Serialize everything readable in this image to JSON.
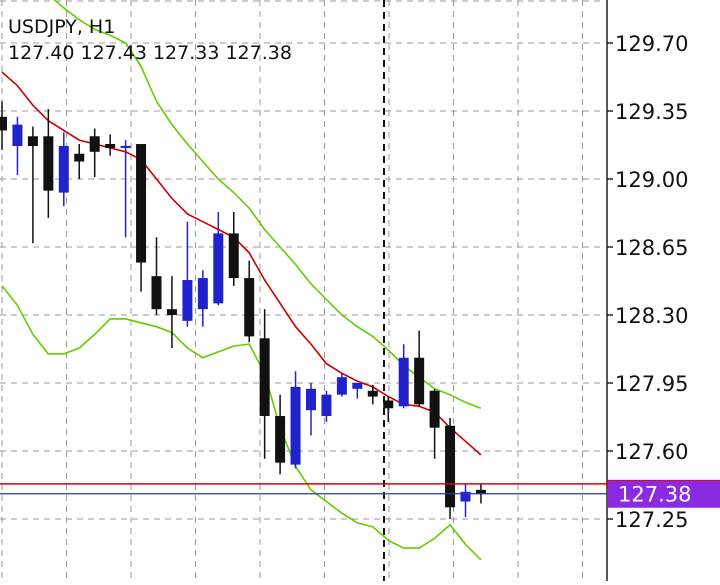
{
  "header": {
    "symbol_timeframe": "USDJPY, H1",
    "open": "127.40",
    "high": "127.43",
    "low": "127.33",
    "close": "127.38"
  },
  "colors": {
    "bull_candle": "#2222cc",
    "bear_candle": "#111111",
    "middle_band": "#cc0000",
    "outer_bands": "#66cc00",
    "bid_line": "#dd0000",
    "ask_line": "#3333aa",
    "price_tag_bg": "#8a2be2",
    "grid": "#9a9a9a",
    "period_separator": "#111111"
  },
  "chart_data": {
    "type": "candlestick",
    "symbol": "USDJPY",
    "timeframe": "H1",
    "ylim": [
      127.03,
      129.85
    ],
    "y_ticks": [
      "129.70",
      "129.35",
      "129.00",
      "128.65",
      "128.30",
      "127.95",
      "127.60",
      "127.25"
    ],
    "current_price": "127.38",
    "grid": true,
    "indicator": "bollinger_bands",
    "candles": [
      {
        "o": 129.32,
        "h": 129.4,
        "l": 129.15,
        "c": 129.25
      },
      {
        "o": 129.17,
        "h": 129.32,
        "l": 129.02,
        "c": 129.28
      },
      {
        "o": 129.22,
        "h": 129.27,
        "l": 128.67,
        "c": 129.17
      },
      {
        "o": 129.22,
        "h": 129.36,
        "l": 128.8,
        "c": 128.94
      },
      {
        "o": 128.93,
        "h": 129.24,
        "l": 128.86,
        "c": 129.17
      },
      {
        "o": 129.13,
        "h": 129.18,
        "l": 129.0,
        "c": 129.09
      },
      {
        "o": 129.22,
        "h": 129.26,
        "l": 129.01,
        "c": 129.14
      },
      {
        "o": 129.18,
        "h": 129.23,
        "l": 129.12,
        "c": 129.16
      },
      {
        "o": 129.16,
        "h": 129.2,
        "l": 128.7,
        "c": 129.17
      },
      {
        "o": 129.18,
        "h": 129.18,
        "l": 128.42,
        "c": 128.57
      },
      {
        "o": 128.5,
        "h": 128.7,
        "l": 128.3,
        "c": 128.33
      },
      {
        "o": 128.33,
        "h": 128.5,
        "l": 128.13,
        "c": 128.3
      },
      {
        "o": 128.27,
        "h": 128.78,
        "l": 128.24,
        "c": 128.48
      },
      {
        "o": 128.33,
        "h": 128.53,
        "l": 128.24,
        "c": 128.49
      },
      {
        "o": 128.36,
        "h": 128.83,
        "l": 128.35,
        "c": 128.72
      },
      {
        "o": 128.72,
        "h": 128.83,
        "l": 128.45,
        "c": 128.49
      },
      {
        "o": 128.49,
        "h": 128.58,
        "l": 128.16,
        "c": 128.19
      },
      {
        "o": 128.18,
        "h": 128.33,
        "l": 127.56,
        "c": 127.78
      },
      {
        "o": 127.78,
        "h": 127.89,
        "l": 127.48,
        "c": 127.54
      },
      {
        "o": 127.53,
        "h": 128.01,
        "l": 127.51,
        "c": 127.93
      },
      {
        "o": 127.81,
        "h": 127.95,
        "l": 127.68,
        "c": 127.92
      },
      {
        "o": 127.78,
        "h": 127.91,
        "l": 127.75,
        "c": 127.89
      },
      {
        "o": 127.89,
        "h": 128.0,
        "l": 127.88,
        "c": 127.98
      },
      {
        "o": 127.92,
        "h": 127.95,
        "l": 127.87,
        "c": 127.95
      },
      {
        "o": 127.91,
        "h": 127.94,
        "l": 127.84,
        "c": 127.88
      },
      {
        "o": 127.86,
        "h": 127.88,
        "l": 127.75,
        "c": 127.82
      },
      {
        "o": 127.83,
        "h": 128.15,
        "l": 127.82,
        "c": 128.08
      },
      {
        "o": 128.08,
        "h": 128.22,
        "l": 127.83,
        "c": 127.84
      },
      {
        "o": 127.91,
        "h": 127.92,
        "l": 127.56,
        "c": 127.72
      },
      {
        "o": 127.73,
        "h": 127.77,
        "l": 127.25,
        "c": 127.31
      },
      {
        "o": 127.34,
        "h": 127.43,
        "l": 127.26,
        "c": 127.39
      },
      {
        "o": 127.4,
        "h": 127.43,
        "l": 127.33,
        "c": 127.38
      }
    ],
    "bands_x": [
      0,
      1,
      2,
      3,
      4,
      5,
      6,
      7,
      8,
      9,
      10,
      11,
      12,
      13,
      14,
      15,
      16,
      17,
      18,
      19,
      20,
      21,
      22,
      23,
      24,
      25,
      26,
      27,
      28,
      29,
      30,
      31
    ],
    "upper_band": [
      130.1,
      130.05,
      130.0,
      129.95,
      129.88,
      129.82,
      129.77,
      129.74,
      129.7,
      129.58,
      129.4,
      129.28,
      129.18,
      129.09,
      129.0,
      128.93,
      128.85,
      128.74,
      128.65,
      128.56,
      128.46,
      128.38,
      128.3,
      128.24,
      128.19,
      128.12,
      128.04,
      127.98,
      127.92,
      127.89,
      127.85,
      127.82
    ],
    "middle_band": [
      129.55,
      129.48,
      129.38,
      129.3,
      129.25,
      129.2,
      129.18,
      129.16,
      129.14,
      129.1,
      129.0,
      128.9,
      128.82,
      128.78,
      128.74,
      128.7,
      128.62,
      128.48,
      128.36,
      128.24,
      128.15,
      128.05,
      128.0,
      127.96,
      127.93,
      127.88,
      127.84,
      127.83,
      127.8,
      127.72,
      127.65,
      127.58
    ],
    "lower_band": [
      128.45,
      128.35,
      128.2,
      128.1,
      128.1,
      128.13,
      128.2,
      128.28,
      128.28,
      128.26,
      128.24,
      128.21,
      128.13,
      128.08,
      128.11,
      128.14,
      128.15,
      128.0,
      127.72,
      127.52,
      127.4,
      127.34,
      127.28,
      127.23,
      127.21,
      127.14,
      127.1,
      127.1,
      127.15,
      127.22,
      127.12,
      127.04
    ],
    "bid_price": "127.38",
    "ask_price": "127.40"
  }
}
